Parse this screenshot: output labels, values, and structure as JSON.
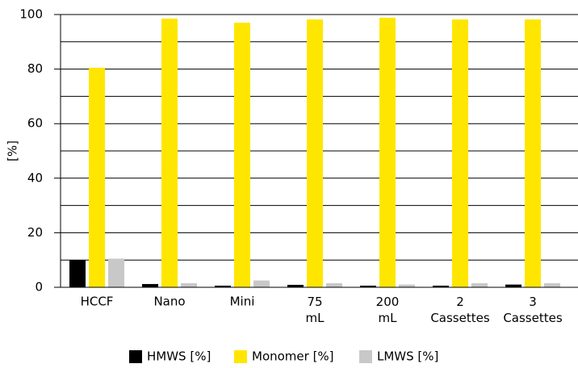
{
  "chart_data": {
    "type": "bar",
    "ylabel": "[%]",
    "categories": [
      "HCCF",
      "Nano",
      "Mini",
      "75 mL",
      "200 mL",
      "2 Cassettes",
      "3 Cassettes"
    ],
    "series": [
      {
        "name": "HMWS [%]",
        "color": "#000000",
        "values": [
          10,
          1.2,
          0.6,
          0.9,
          0.6,
          0.6,
          1.0
        ]
      },
      {
        "name": "Monomer [%]",
        "color": "#ffe600",
        "values": [
          80.5,
          98.5,
          97,
          98.2,
          98.8,
          98.2,
          98.2
        ]
      },
      {
        "name": "LMWS [%]",
        "color": "#c8c8c8",
        "values": [
          10.5,
          1.5,
          2.5,
          1.5,
          1.0,
          1.5,
          1.5
        ]
      }
    ],
    "ylim": [
      0,
      100
    ],
    "yticks": [
      0,
      20,
      40,
      60,
      80,
      100
    ],
    "minor_yticks": [
      10,
      30,
      50,
      70,
      90
    ],
    "grid": true,
    "legend": "bottom"
  }
}
